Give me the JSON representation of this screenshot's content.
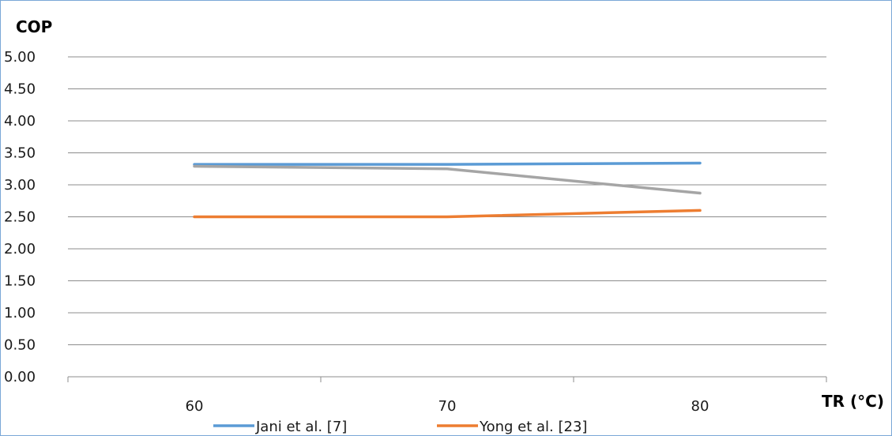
{
  "chart_data": {
    "type": "line",
    "xlabel": "TR (°C)",
    "ylabel": "COP",
    "categories": [
      "60",
      "70",
      "80"
    ],
    "ylim": [
      0,
      5
    ],
    "yticks": [
      "0.00",
      "0.50",
      "1.00",
      "1.50",
      "2.00",
      "2.50",
      "3.00",
      "3.50",
      "4.00",
      "4.50",
      "5.00"
    ],
    "grid": true,
    "legend_position": "bottom",
    "series": [
      {
        "name": "Jani et al. [7]",
        "values": [
          3.32,
          3.32,
          3.34
        ],
        "color": "#5b9bd5",
        "legend": true
      },
      {
        "name": "Yong et al. [23]",
        "values": [
          2.5,
          2.5,
          2.6
        ],
        "color": "#ed7d31",
        "legend": true
      },
      {
        "values": [
          3.29,
          3.25,
          2.87
        ],
        "color": "#a5a5a5",
        "legend": false
      }
    ]
  }
}
